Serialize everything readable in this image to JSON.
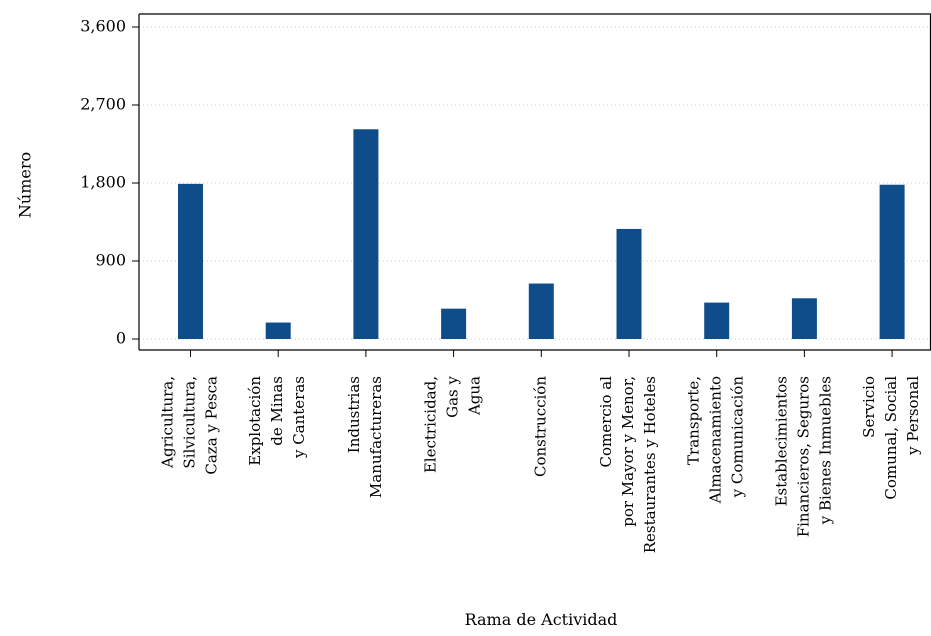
{
  "chart_data": {
    "type": "bar",
    "xlabel": "Rama de Actividad",
    "ylabel": "Número",
    "ylim": [
      0,
      3700
    ],
    "yticks": [
      0,
      900,
      1800,
      2700,
      3600
    ],
    "ytick_labels": [
      "0",
      "900",
      "1,800",
      "2,700",
      "3,600"
    ],
    "grid": "horizontal dotted",
    "legend": "none",
    "bar_color": "#0f4c8a",
    "categories": [
      [
        "Agricultura,",
        "Silvicultura,",
        "Caza y Pesca"
      ],
      [
        "Explotación",
        "de Minas",
        "y Canteras"
      ],
      [
        "Industrias",
        "Manufactureras"
      ],
      [
        "Electricidad,",
        "Gas y",
        "Agua"
      ],
      [
        "Construcción"
      ],
      [
        "Comercio al",
        "por Mayor y Menor,",
        "Restaurantes y Hoteles"
      ],
      [
        "Transporte,",
        "Almacenamiento",
        "y Comunicación"
      ],
      [
        "Establecimientos",
        "Financieros, Seguros",
        "y Bienes Inmuebles"
      ],
      [
        "Servicio",
        "Comunal, Social",
        "y Personal"
      ]
    ],
    "values": [
      1790,
      190,
      2420,
      350,
      640,
      1270,
      420,
      470,
      1780
    ]
  }
}
